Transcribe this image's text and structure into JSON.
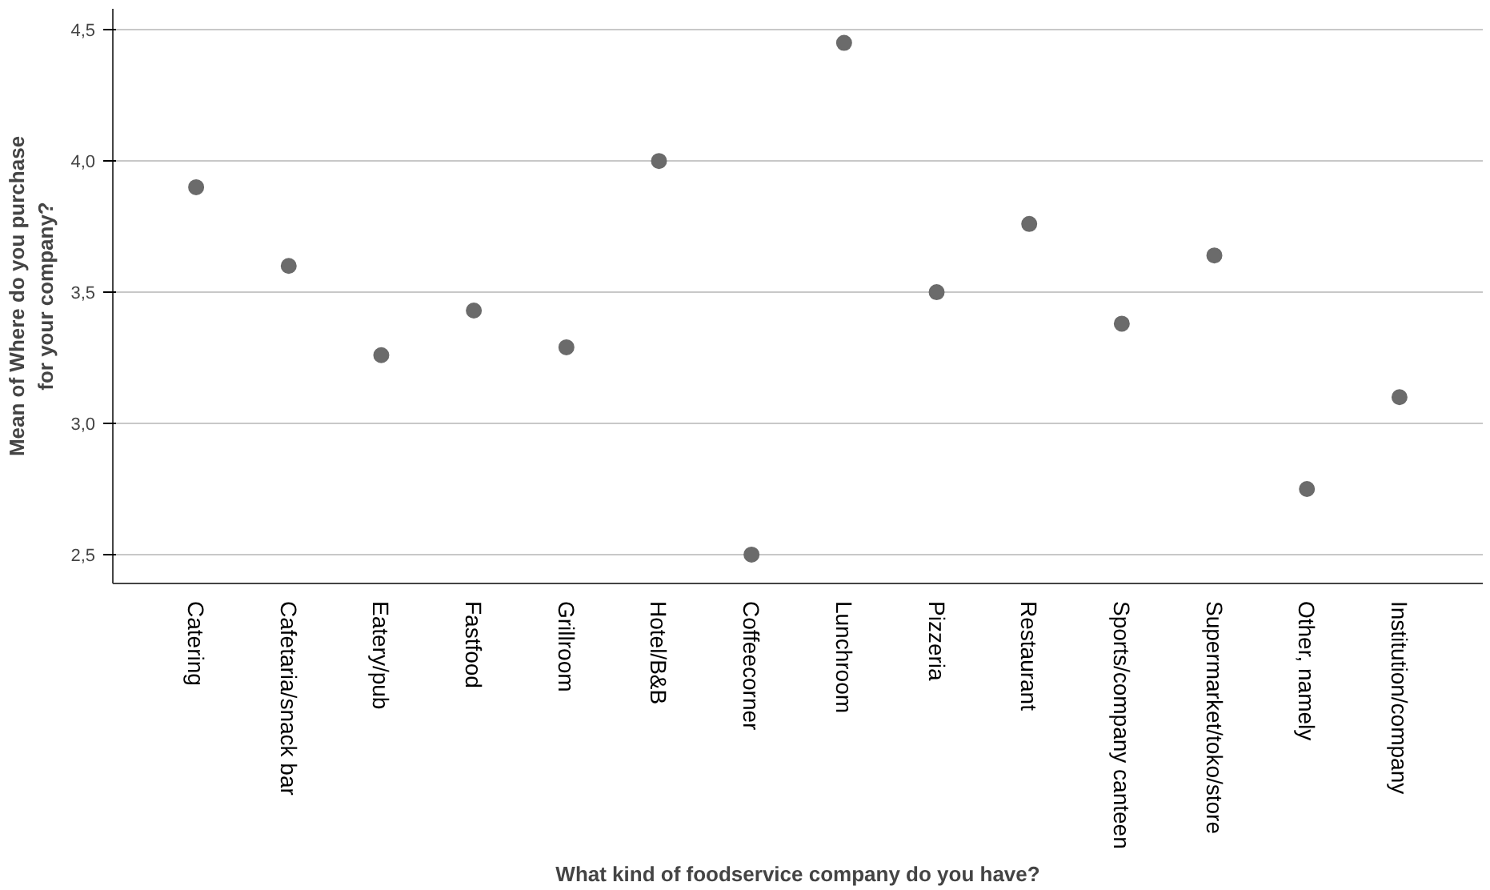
{
  "chart_data": {
    "type": "scatter",
    "xlabel": "What kind of foodservice company do you have?",
    "ylabel": "Mean of Where do you purchase\nfor your company?",
    "categories": [
      "Catering",
      "Cafetaria/snack bar",
      "Eatery/pub",
      "Fastfood",
      "Grillroom",
      "Hotel/B&B",
      "Coffeecorner",
      "Lunchroom",
      "Pizzeria",
      "Restaurant",
      "Sports/company canteen",
      "Supermarket/toko/store",
      "Other, namely",
      "Institution/company"
    ],
    "series": [
      {
        "color": "#6b6b6b",
        "values": [
          3.9,
          3.6,
          3.26,
          3.43,
          3.29,
          4.0,
          2.5,
          4.45,
          3.5,
          3.76,
          3.38,
          3.64,
          2.75,
          3.1
        ]
      }
    ],
    "ylim": [
      2.39,
      4.58
    ],
    "yticks": [
      {
        "value": 2.5,
        "label": "2,5"
      },
      {
        "value": 3.0,
        "label": "3,0"
      },
      {
        "value": 3.5,
        "label": "3,5"
      },
      {
        "value": 4.0,
        "label": "4,0"
      },
      {
        "value": 4.5,
        "label": "4,5"
      }
    ],
    "grid": "y",
    "marker": "circle"
  }
}
